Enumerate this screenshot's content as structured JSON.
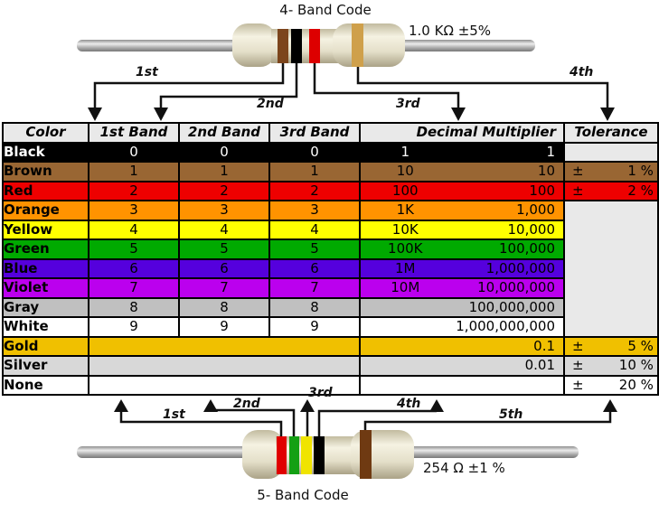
{
  "top": {
    "title": "4- Band Code",
    "value_label": "1.0 KΩ  ±5%",
    "arrows": [
      "1st",
      "2nd",
      "3rd",
      "4th"
    ],
    "bands": [
      {
        "order": "1st",
        "color_name": "brown",
        "hex": "#7c451c"
      },
      {
        "order": "2nd",
        "color_name": "black",
        "hex": "#000000"
      },
      {
        "order": "3rd",
        "color_name": "red",
        "hex": "#dd0000"
      },
      {
        "order": "4th",
        "color_name": "gold",
        "hex": "#cfa04b"
      }
    ]
  },
  "bottom": {
    "title": "5- Band Code",
    "value_label": "254 Ω  ±1 %",
    "arrows": [
      "1st",
      "2nd",
      "3rd",
      "4th",
      "5th"
    ],
    "bands": [
      {
        "order": "1st",
        "color_name": "red",
        "hex": "#e00000"
      },
      {
        "order": "2nd",
        "color_name": "green",
        "hex": "#14a014"
      },
      {
        "order": "3rd",
        "color_name": "yellow",
        "hex": "#f0e400"
      },
      {
        "order": "4th",
        "color_name": "black",
        "hex": "#000000"
      },
      {
        "order": "5th",
        "color_name": "brown",
        "hex": "#6f3a12"
      }
    ]
  },
  "table": {
    "headers": [
      "Color",
      "1st Band",
      "2nd Band",
      "3rd Band",
      "Decimal Multiplier",
      "Tolerance"
    ],
    "rows": [
      {
        "name": "Black",
        "bg": "#000000",
        "fg": "#ffffff",
        "bands": [
          "0",
          "0",
          "0"
        ],
        "mult": {
          "abbr": "1",
          "full": "1"
        },
        "tol": {
          "type": "empty"
        }
      },
      {
        "name": "Brown",
        "bg": "#996633",
        "bands": [
          "1",
          "1",
          "1"
        ],
        "mult": {
          "abbr": "10",
          "full": "10"
        },
        "tol": {
          "type": "value",
          "sign": "±",
          "value": "1 %"
        }
      },
      {
        "name": "Red",
        "bg": "#ee0000",
        "bands": [
          "2",
          "2",
          "2"
        ],
        "mult": {
          "abbr": "100",
          "full": "100"
        },
        "tol": {
          "type": "value",
          "sign": "±",
          "value": "2 %"
        }
      },
      {
        "name": "Orange",
        "bg": "#ff9300",
        "bands": [
          "3",
          "3",
          "3"
        ],
        "mult": {
          "abbr": "1K",
          "full": "1,000"
        },
        "tol": {
          "type": "merged_empty",
          "rowspan": 7
        }
      },
      {
        "name": "Yellow",
        "bg": "#ffff00",
        "bands": [
          "4",
          "4",
          "4"
        ],
        "mult": {
          "abbr": "10K",
          "full": "10,000"
        },
        "tol": {
          "type": "skip"
        }
      },
      {
        "name": "Green",
        "bg": "#00aa00",
        "bands": [
          "5",
          "5",
          "5"
        ],
        "mult": {
          "abbr": "100K",
          "full": "100,000"
        },
        "tol": {
          "type": "skip"
        }
      },
      {
        "name": "Blue",
        "bg": "#5500dd",
        "bands": [
          "6",
          "6",
          "6"
        ],
        "mult": {
          "abbr": "1M",
          "full": "1,000,000"
        },
        "tol": {
          "type": "skip"
        }
      },
      {
        "name": "Violet",
        "bg": "#bb00ee",
        "bands": [
          "7",
          "7",
          "7"
        ],
        "mult": {
          "abbr": "10M",
          "full": "10,000,000"
        },
        "tol": {
          "type": "skip"
        }
      },
      {
        "name": "Gray",
        "bg": "#c0c0c0",
        "bands": [
          "8",
          "8",
          "8"
        ],
        "mult": {
          "abbr": "",
          "full": "100,000,000"
        },
        "tol": {
          "type": "skip"
        }
      },
      {
        "name": "White",
        "bg": "#ffffff",
        "bands": [
          "9",
          "9",
          "9"
        ],
        "mult": {
          "abbr": "",
          "full": "1,000,000,000"
        },
        "tol": {
          "type": "skip"
        }
      },
      {
        "name": "Gold",
        "bg": "#f0c000",
        "bands": null,
        "mult": {
          "abbr": "",
          "full": "0.1"
        },
        "tol": {
          "type": "value",
          "sign": "±",
          "value": "5 %"
        }
      },
      {
        "name": "Silver",
        "bg": "#d8d8d8",
        "bands": null,
        "mult": {
          "abbr": "",
          "full": "0.01"
        },
        "tol": {
          "type": "value",
          "sign": "±",
          "value": "10 %"
        }
      },
      {
        "name": "None",
        "bg": "#ffffff",
        "bands": null,
        "mult": {
          "abbr": "",
          "full": ""
        },
        "tol": {
          "type": "value",
          "sign": "±",
          "value": "20 %"
        }
      }
    ]
  },
  "colors": {
    "header_bg": "#e9e9e9",
    "table_border": "#000000",
    "empty_tolerance_bg": "#e9e9e9"
  }
}
